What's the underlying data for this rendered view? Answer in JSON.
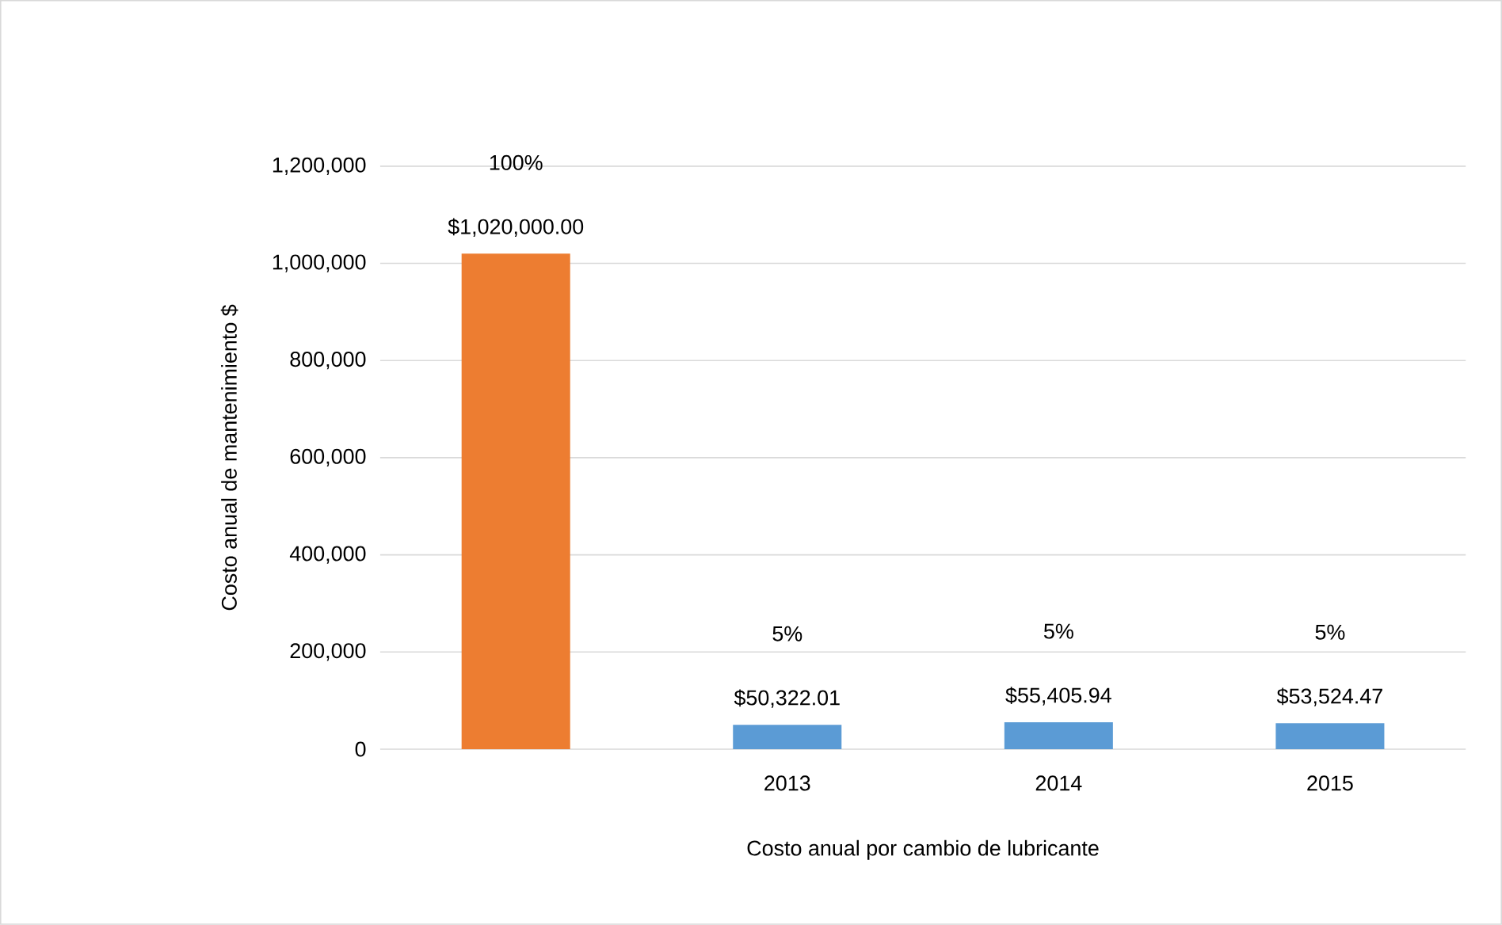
{
  "chart_data": {
    "type": "bar",
    "xlabel": "Costo anual por cambio de lubricante",
    "ylabel": "Costo anual de mantenimiento $",
    "categories": [
      null,
      "2013",
      "2014",
      "2015"
    ],
    "values": [
      1020000,
      50322.01,
      55405.94,
      53524.47
    ],
    "colors": [
      "#ed7d31",
      "#5b9bd5",
      "#5b9bd5",
      "#5b9bd5"
    ],
    "value_labels": [
      "$1,020,000.00",
      "$50,322.01",
      "$55,405.94",
      "$53,524.47"
    ],
    "annotations": [
      "100%",
      "5%",
      "5%",
      "5%"
    ],
    "ylim": [
      0,
      1200000
    ],
    "yticks": [
      0,
      {
        "value": 200000,
        "label": "200,000"
      },
      {
        "value": 400000,
        "label": "400,000"
      },
      {
        "value": 600000,
        "label": "600,000"
      },
      {
        "value": 800000,
        "label": "800,000"
      },
      {
        "value": 1000000,
        "label": "1,000,000"
      },
      {
        "value": 1200000,
        "label": "1,200,000"
      }
    ],
    "grid": "y"
  }
}
